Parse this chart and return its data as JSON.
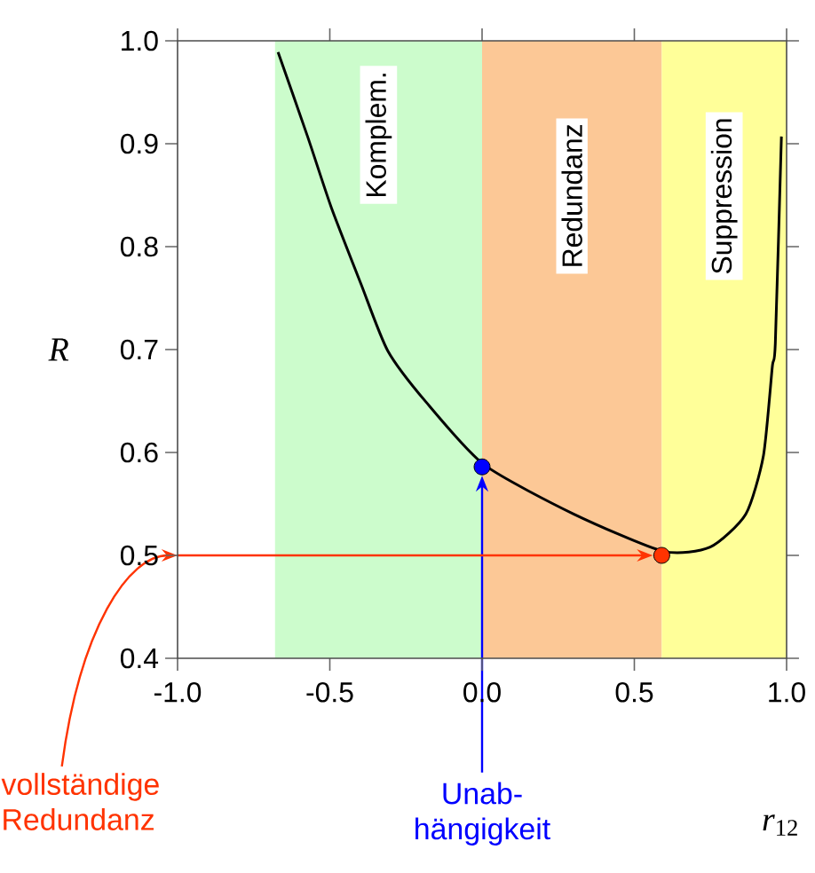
{
  "chart_data": {
    "type": "line",
    "xlabel": "*r*$_{12}$",
    "ylabel": "R",
    "xlim": [
      -1,
      1
    ],
    "ylim": [
      0.4,
      1.0
    ],
    "xticks": [
      {
        "value": -1,
        "label": "-1.0"
      },
      {
        "value": -0.5,
        "label": "-0.5"
      },
      {
        "value": 0,
        "label": "0.0"
      },
      {
        "value": 0.5,
        "label": "0.5"
      },
      {
        "value": 1,
        "label": "1.0"
      }
    ],
    "yticks": [
      0.4,
      0.5,
      0.6,
      0.7,
      0.8,
      0.9,
      {
        "value": 1,
        "label": "1.0"
      }
    ],
    "bands": [
      {
        "axis": "x",
        "from": -0.68,
        "to": 0,
        "label": "Komplem.",
        "color": "#ccfccc"
      },
      {
        "axis": "x",
        "from": 0,
        "to": 0.59,
        "label": "Redundanz",
        "color": "#fcc896"
      },
      {
        "axis": "x",
        "from": 0.59,
        "to": 1.0,
        "label": "Suppression",
        "color": "#ffff99"
      }
    ],
    "series": [
      {
        "color": "#000000",
        "marker": "none",
        "x": [
          -0.67,
          -0.573,
          -0.495,
          -0.398,
          -0.31,
          -0.184,
          0.007,
          0.302,
          0.594,
          0.749,
          0.866,
          0.924,
          0.953,
          0.963,
          0.983
        ],
        "values": [
          0.989,
          0.907,
          0.838,
          0.764,
          0.699,
          0.649,
          0.588,
          0.54,
          0.504,
          0.508,
          0.54,
          0.597,
          0.683,
          0.706,
          0.907
        ]
      },
      {
        "type": "scatter",
        "marker": "circle",
        "x": [
          0,
          0.59
        ],
        "values": [
          0.586,
          0.5
        ],
        "colors": [
          "#0000ff",
          "#ff3300"
        ]
      }
    ],
    "annotations": [
      "Unab- hängigkeit",
      "vollständige Redundanz"
    ]
  }
}
